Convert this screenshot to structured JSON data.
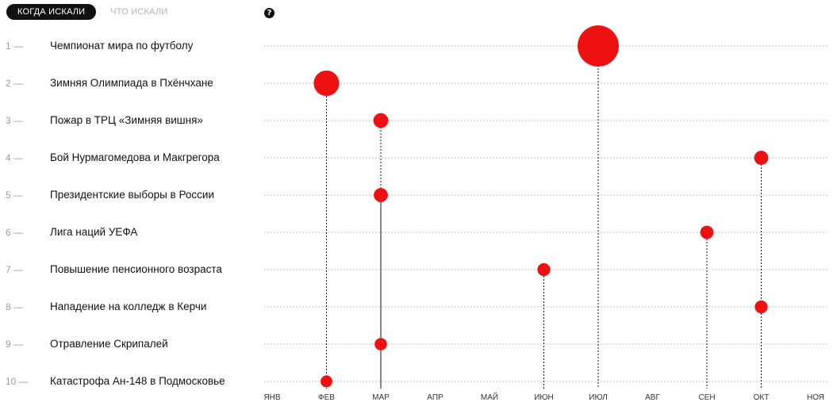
{
  "tabs": {
    "active": "КОГДА ИСКАЛИ",
    "inactive": "ЧТО ИСКАЛИ"
  },
  "help_icon": "question-circle-icon",
  "colors": {
    "dot": "#ee1111",
    "line": "#111111",
    "grid": "#bbbbbb"
  },
  "chart_data": {
    "type": "scatter",
    "title": "",
    "months": [
      "ЯНВ",
      "ФЕВ",
      "МАР",
      "АПР",
      "МАЙ",
      "ИЮН",
      "ИЮЛ",
      "АВГ",
      "СЕН",
      "ОКТ",
      "НОЯ"
    ],
    "grid": true,
    "items": [
      {
        "rank": "1 —",
        "label": "Чемпионат мира по футболу",
        "month_index": 6,
        "volume": 100
      },
      {
        "rank": "2 —",
        "label": "Зимняя Олимпиада в Пхёнчхане",
        "month_index": 1,
        "volume": 30
      },
      {
        "rank": "3 —",
        "label": "Пожар в ТРЦ «Зимняя вишня»",
        "month_index": 2,
        "volume": 6
      },
      {
        "rank": "4 —",
        "label": "Бой Нурмагомедова и Макгрегора",
        "month_index": 9,
        "volume": 5
      },
      {
        "rank": "5 —",
        "label": "Президентские выборы в России",
        "month_index": 2,
        "volume": 5
      },
      {
        "rank": "6 —",
        "label": "Лига наций УЕФА",
        "month_index": 8,
        "volume": 4
      },
      {
        "rank": "7 —",
        "label": "Повышение пенсионного возраста",
        "month_index": 5,
        "volume": 3.5
      },
      {
        "rank": "8 —",
        "label": "Нападение на колледж в Керчи",
        "month_index": 9,
        "volume": 3.5
      },
      {
        "rank": "9 —",
        "label": "Отравление Скрипалей",
        "month_index": 2,
        "volume": 3
      },
      {
        "rank": "10 —",
        "label": "Катастрофа Ан-148 в Подмосковье",
        "month_index": 1,
        "volume": 2.5
      }
    ]
  }
}
